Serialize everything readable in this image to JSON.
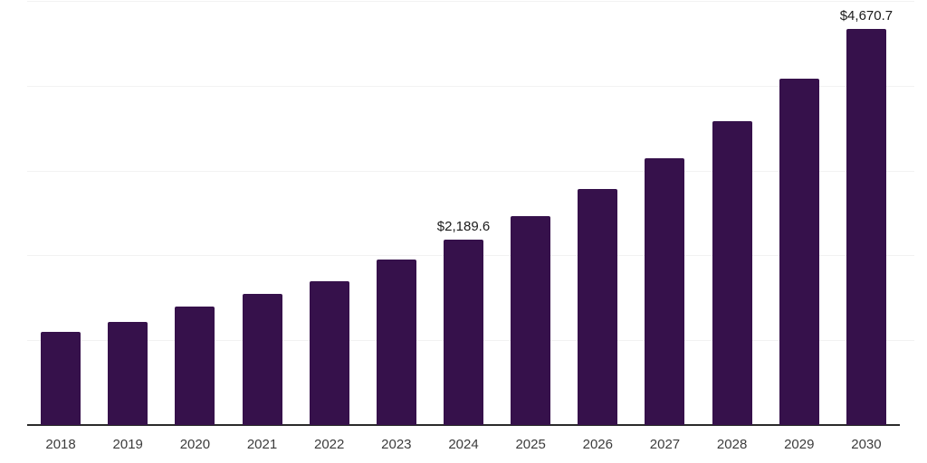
{
  "chart_data": {
    "type": "bar",
    "title": "",
    "xlabel": "",
    "ylabel": "",
    "legend": "none",
    "grid": true,
    "categories": [
      "2018",
      "2019",
      "2020",
      "2021",
      "2022",
      "2023",
      "2024",
      "2025",
      "2026",
      "2027",
      "2028",
      "2029",
      "2030"
    ],
    "values": [
      1098,
      1215,
      1396,
      1546,
      1695,
      1950,
      2189.6,
      2462,
      2780,
      3145,
      3580,
      4083,
      4670.7
    ],
    "data_labels": {
      "2024": "$2,189.6",
      "2030": "$4,670.7"
    },
    "ylim": [
      0,
      5000
    ],
    "gridline_step": 1000,
    "bar_color": "#36114B",
    "axis_line_color": "#2a2a2a",
    "gridline_color": "#f2f2f2",
    "tick_label_color": "#3c3c3c",
    "data_label_color": "#1a1a1a"
  }
}
